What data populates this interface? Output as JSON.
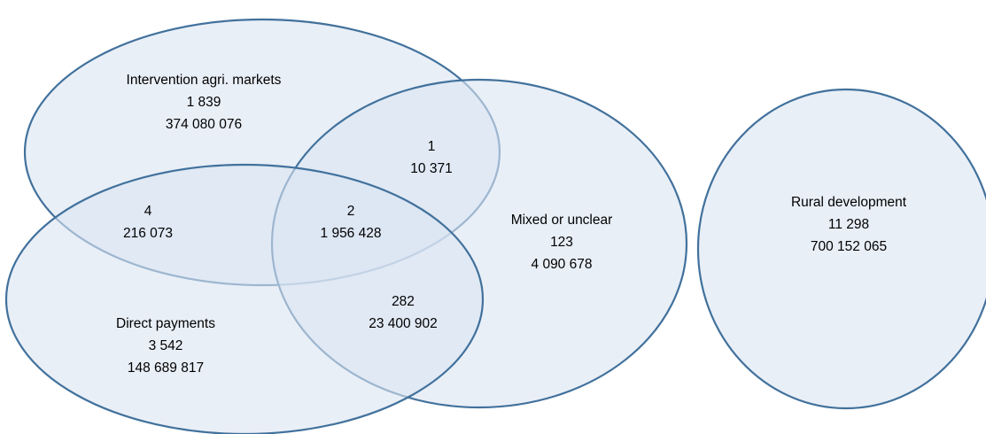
{
  "heading": "",
  "colors": {
    "fill": "#dbe5f1",
    "stroke": "#41719c",
    "text": "#000000"
  },
  "sets": {
    "intervention": {
      "lines": [
        "Intervention agri. markets",
        "1 839",
        "374 080 076"
      ]
    },
    "mixed": {
      "lines": [
        "Mixed or unclear",
        "123",
        "4 090 678"
      ]
    },
    "direct": {
      "lines": [
        "Direct payments",
        "3 542",
        "148 689 817"
      ]
    },
    "rural": {
      "lines": [
        "Rural development",
        "11 298",
        "700 152 065"
      ]
    }
  },
  "intersections": {
    "intervention_mixed": {
      "lines": [
        "1",
        "10 371"
      ]
    },
    "intervention_direct": {
      "lines": [
        "4",
        "216 073"
      ]
    },
    "all_three": {
      "lines": [
        "2",
        "1 956 428"
      ]
    },
    "mixed_direct": {
      "lines": [
        "282",
        "23 400 902"
      ]
    }
  }
}
